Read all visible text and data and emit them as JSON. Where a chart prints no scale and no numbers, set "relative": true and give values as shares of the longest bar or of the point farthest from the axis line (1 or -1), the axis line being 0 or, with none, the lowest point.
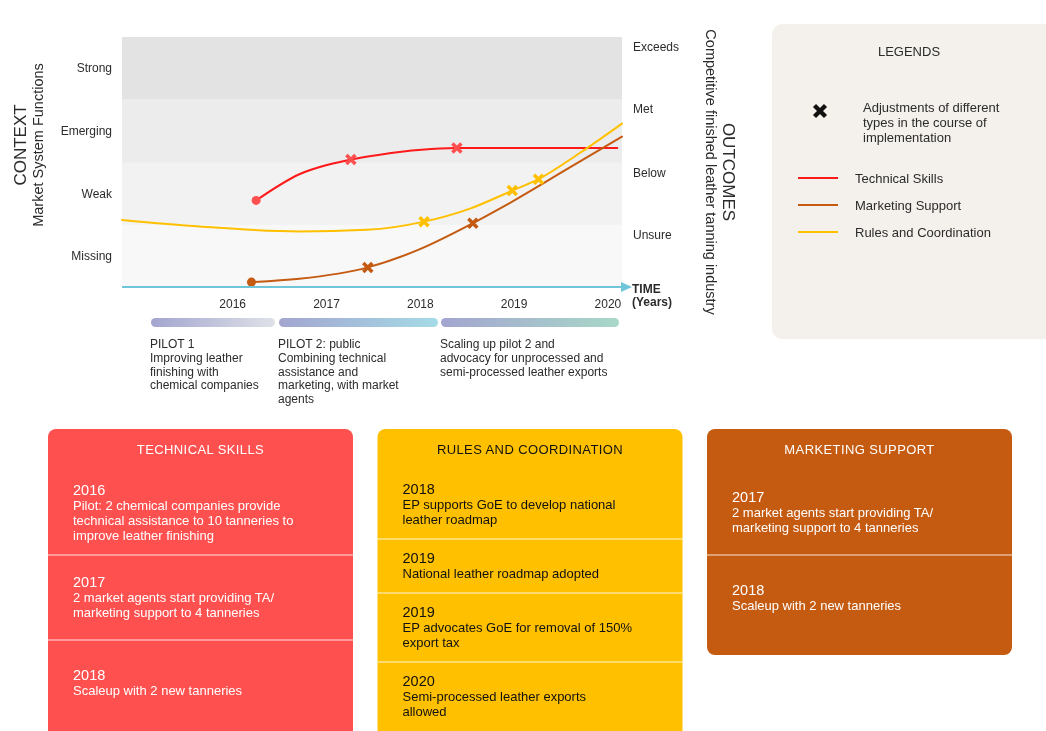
{
  "chart_data": [
    {
      "type": "line",
      "relative": true,
      "xlabel": "TIME\n(Years)",
      "ylabel": "CONTEXT\nMarket System Functions",
      "y2label": "OUTCOMES\nCompetitive finished leather tanning industry",
      "legend_title": "LEGENDS",
      "legend": "right",
      "xlim": [
        2014.82,
        2020.15
      ],
      "xticks": [
        2016,
        2017,
        2018,
        2019,
        2020
      ],
      "bands": [
        {
          "axis": "y",
          "from": 0,
          "to": 0.38,
          "color": "#f8f8f8",
          "label": "Missing"
        },
        {
          "axis": "y",
          "from": 0.38,
          "to": 0.76,
          "color": "#f2f2f2",
          "label": "Weak"
        },
        {
          "axis": "y",
          "from": 0.76,
          "to": 1.15,
          "color": "#ececec",
          "label": "Emerging"
        },
        {
          "axis": "y",
          "from": 1.15,
          "to": 1.53,
          "color": "#e3e3e3",
          "label": "Strong"
        }
      ],
      "annotations": [
        "Exceeds",
        "Met",
        "Below",
        "Unsure",
        "PILOT 1\nImproving leather\nfinishing with\nchemical companies",
        "PILOT 2: public\nCombining technical\nassistance and\nmarketing, with market\nagents",
        "Scaling up pilot 2 and\nadvocacy for unprocessed and\nsemi-processed leather exports",
        "Adjustments of different types in the course of implementation"
      ],
      "series": [
        {
          "type": "scatter",
          "marker": "cross",
          "x": [
            2017.26,
            2018.39,
            2017.44,
            2018.56,
            2018.04,
            2018.98,
            2019.26
          ],
          "values": [
            0.78,
            0.85,
            0.12,
            0.39,
            0.4,
            0.59,
            0.66
          ],
          "colors": [
            "#ff5050",
            "#ff5050",
            "#c55a11",
            "#c55a11",
            "#ffc000",
            "#ffc000",
            "#ffc000"
          ]
        },
        {
          "name": "Technical Skills",
          "type": "line",
          "color": "#fe1a1a",
          "x": [
            2016.25,
            2016.71,
            2017.26,
            2017.57,
            2018.39,
            2019.27,
            2020.1
          ],
          "values": [
            0.53,
            0.69,
            0.78,
            0.81,
            0.85,
            0.85,
            0.85
          ]
        },
        {
          "name": "Marketing Support",
          "type": "line",
          "color": "#c55a11",
          "x": [
            2016.2,
            2016.71,
            2017.44,
            2017.99,
            2018.56,
            2018.88,
            2019.59,
            2020.15
          ],
          "values": [
            0.03,
            0.05,
            0.12,
            0.23,
            0.39,
            0.49,
            0.73,
            0.92
          ]
        },
        {
          "name": "Rules and Coordination",
          "type": "line",
          "color": "#ffc000",
          "x": [
            2014.82,
            2015.65,
            2016.71,
            2017.43,
            2018.04,
            2018.53,
            2018.98,
            2019.26,
            2019.7,
            2020.15
          ],
          "values": [
            0.41,
            0.37,
            0.34,
            0.35,
            0.4,
            0.48,
            0.59,
            0.66,
            0.82,
            1
          ]
        },
        {
          "type": "scatter",
          "marker": "circle",
          "x": [
            2016.25,
            2016.2
          ],
          "values": [
            0.53,
            0.03
          ],
          "colors": [
            "#ff5050",
            "#c55a11"
          ]
        }
      ]
    },
    {
      "type": "other",
      "title": "TECHNICAL SKILLS",
      "color": "#ff5050",
      "annotations": [
        "2016\nPilot: 2 chemical companies provide\ntechnical assistance to 10 tanneries to\nimprove leather finishing",
        "2017\n2 market agents start providing TA/\nmarketing support to 4 tanneries",
        "2018\nScaleup with 2 new tanneries"
      ]
    },
    {
      "type": "other",
      "title": "RULES AND COORDINATION",
      "color": "#ffc000",
      "annotations": [
        "2018\nEP supports GoE to develop national\nleather roadmap",
        "2019\nNational leather roadmap adopted",
        "2019\nEP advocates GoE for removal of 150%\nexport tax",
        "2020\nSemi-processed leather exports\nallowed"
      ]
    },
    {
      "type": "other",
      "title": "MARKETING SUPPORT",
      "color": "#c55a11",
      "annotations": [
        "2017\n2 market agents start providing TA/\nmarketing support to 4 tanneries",
        "2018\nScaleup with 2 new tanneries"
      ]
    }
  ]
}
